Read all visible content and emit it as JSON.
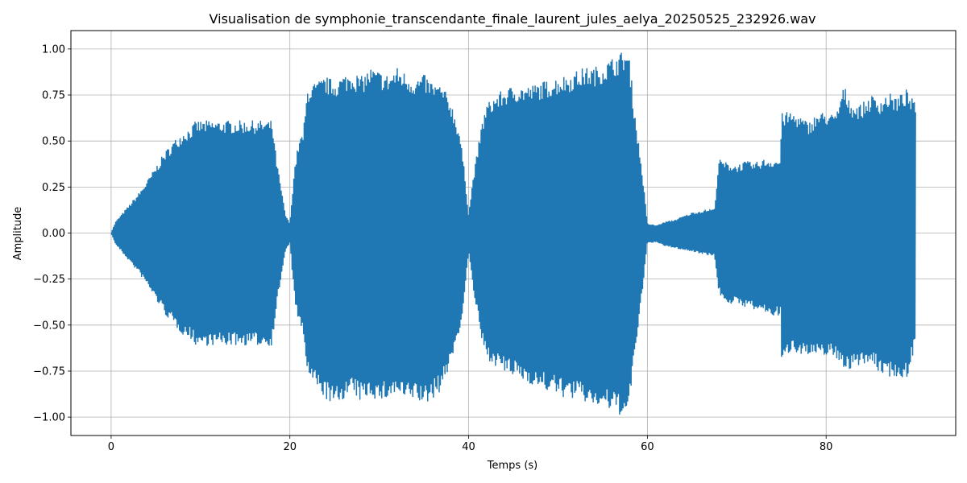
{
  "chart_data": {
    "type": "line",
    "title": "Visualisation de symphonie_transcendante_finale_laurent_jules_aelya_20250525_232926.wav",
    "xlabel": "Temps (s)",
    "ylabel": "Amplitude",
    "xlim": [
      -4.5,
      94.5
    ],
    "ylim": [
      -1.1,
      1.1
    ],
    "xticks": [
      0,
      20,
      40,
      60,
      80
    ],
    "xtick_labels": [
      "0",
      "20",
      "40",
      "60",
      "80"
    ],
    "yticks": [
      1.0,
      0.75,
      0.5,
      0.25,
      0.0,
      -0.25,
      -0.5,
      -0.75,
      -1.0
    ],
    "ytick_labels": [
      "1.00",
      "0.75",
      "0.50",
      "0.25",
      "0.00",
      "−0.25",
      "−0.50",
      "−0.75",
      "−1.00"
    ],
    "grid": true,
    "series": [
      {
        "color": "#1f77b4",
        "envelope_t": [
          0,
          0.5,
          1,
          2,
          3,
          4,
          5,
          6,
          7,
          8,
          9,
          9.5,
          10,
          11,
          12,
          13,
          14,
          15,
          16,
          17,
          18,
          18.5,
          19,
          19.5,
          20,
          20.5,
          21,
          21.5,
          22,
          23,
          24,
          25,
          26,
          27,
          28,
          29,
          30,
          31,
          32,
          33,
          34,
          35,
          36,
          37,
          38,
          39,
          39.5,
          40,
          40.5,
          41,
          41.5,
          42,
          43,
          44,
          45,
          46,
          47,
          48,
          49,
          50,
          51,
          52,
          53,
          54,
          55,
          56,
          57,
          57.5,
          58,
          58.5,
          59,
          59.5,
          60,
          61,
          62,
          63,
          64,
          65,
          66,
          67,
          67.5,
          68,
          69,
          70,
          71,
          72,
          73,
          74,
          74.9,
          75,
          76,
          77,
          78,
          79,
          80,
          81,
          82,
          83,
          84,
          85,
          86,
          87,
          88,
          89,
          90
        ],
        "envelope_pos": [
          0.0,
          0.06,
          0.09,
          0.15,
          0.21,
          0.28,
          0.36,
          0.44,
          0.5,
          0.55,
          0.58,
          0.61,
          0.61,
          0.61,
          0.61,
          0.61,
          0.61,
          0.61,
          0.61,
          0.61,
          0.61,
          0.4,
          0.25,
          0.1,
          0.05,
          0.35,
          0.5,
          0.55,
          0.8,
          0.82,
          0.85,
          0.83,
          0.86,
          0.88,
          0.85,
          0.9,
          0.88,
          0.86,
          0.9,
          0.87,
          0.84,
          0.86,
          0.82,
          0.8,
          0.72,
          0.55,
          0.35,
          0.1,
          0.3,
          0.45,
          0.6,
          0.7,
          0.75,
          0.78,
          0.8,
          0.8,
          0.8,
          0.82,
          0.83,
          0.85,
          0.86,
          0.88,
          0.9,
          0.9,
          0.92,
          0.95,
          0.98,
          1.0,
          0.95,
          0.7,
          0.5,
          0.3,
          0.05,
          0.04,
          0.06,
          0.07,
          0.09,
          0.11,
          0.12,
          0.13,
          0.13,
          0.4,
          0.38,
          0.37,
          0.39,
          0.38,
          0.4,
          0.4,
          0.4,
          0.65,
          0.66,
          0.64,
          0.6,
          0.65,
          0.66,
          0.64,
          0.8,
          0.7,
          0.7,
          0.75,
          0.73,
          0.76,
          0.74,
          0.78,
          0.7
        ],
        "envelope_neg": [
          0.0,
          0.06,
          0.09,
          0.15,
          0.21,
          0.28,
          0.36,
          0.44,
          0.5,
          0.55,
          0.58,
          0.61,
          0.61,
          0.61,
          0.61,
          0.61,
          0.61,
          0.61,
          0.61,
          0.61,
          0.61,
          0.4,
          0.25,
          0.1,
          0.05,
          0.35,
          0.5,
          0.55,
          0.78,
          0.85,
          0.9,
          0.95,
          0.9,
          0.88,
          0.92,
          0.88,
          0.92,
          0.9,
          0.88,
          0.92,
          0.9,
          0.94,
          0.9,
          0.85,
          0.7,
          0.55,
          0.35,
          0.1,
          0.3,
          0.45,
          0.6,
          0.68,
          0.72,
          0.76,
          0.78,
          0.8,
          0.82,
          0.85,
          0.86,
          0.88,
          0.9,
          0.9,
          0.92,
          0.94,
          0.95,
          0.97,
          0.99,
          1.0,
          0.95,
          0.7,
          0.5,
          0.3,
          0.05,
          0.05,
          0.07,
          0.08,
          0.09,
          0.1,
          0.11,
          0.12,
          0.12,
          0.33,
          0.38,
          0.39,
          0.4,
          0.42,
          0.43,
          0.45,
          0.45,
          0.72,
          0.64,
          0.65,
          0.67,
          0.68,
          0.66,
          0.68,
          0.73,
          0.75,
          0.7,
          0.72,
          0.76,
          0.78,
          0.78,
          0.8,
          0.6
        ]
      }
    ]
  }
}
